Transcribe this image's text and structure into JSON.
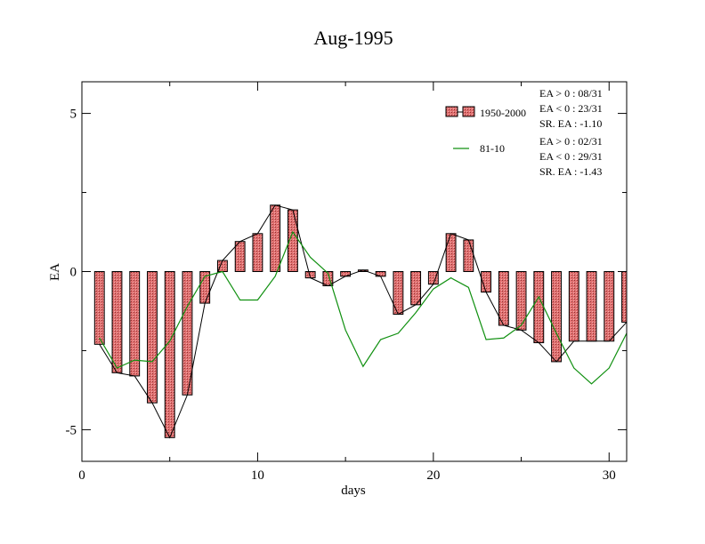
{
  "chart_data": {
    "type": "bar",
    "title": "Aug-1995",
    "xlabel": "days",
    "ylabel": "EA",
    "xlim": [
      0,
      31
    ],
    "ylim": [
      -6,
      6
    ],
    "xticks": [
      0,
      10,
      20,
      30
    ],
    "yticks": [
      -5,
      0,
      5
    ],
    "xtick_labels": [
      "0",
      "10",
      "20",
      "30"
    ],
    "ytick_labels": [
      "-5",
      "0",
      "5"
    ],
    "grid": false,
    "legend_position": "top-right",
    "x": [
      1,
      2,
      3,
      4,
      5,
      6,
      7,
      8,
      9,
      10,
      11,
      12,
      13,
      14,
      15,
      16,
      17,
      18,
      19,
      20,
      21,
      22,
      23,
      24,
      25,
      26,
      27,
      28,
      29,
      30,
      31
    ],
    "series": [
      {
        "name": "1950-2000",
        "kind": "bar",
        "color": "#e07070",
        "values": [
          -2.3,
          -3.2,
          -3.3,
          -4.15,
          -5.25,
          -3.9,
          -1.0,
          0.35,
          0.95,
          1.2,
          2.1,
          1.95,
          -0.2,
          -0.45,
          -0.15,
          0.05,
          -0.15,
          -1.35,
          -1.05,
          -0.4,
          1.2,
          1.0,
          -0.65,
          -1.7,
          -1.85,
          -2.25,
          -2.85,
          -2.2,
          -2.2,
          -2.2,
          -1.6
        ]
      },
      {
        "name": "81-10",
        "kind": "line",
        "color": "#109010",
        "values": [
          -2.1,
          -3.05,
          -2.8,
          -2.85,
          -2.2,
          -1.1,
          -0.15,
          0.0,
          -0.9,
          -0.9,
          -0.15,
          1.25,
          0.45,
          -0.05,
          -1.85,
          -3.0,
          -2.15,
          -1.95,
          -1.3,
          -0.55,
          -0.2,
          -0.5,
          -2.15,
          -2.1,
          -1.7,
          -0.8,
          -1.95,
          -3.05,
          -3.55,
          -3.05,
          -1.95
        ]
      }
    ],
    "legend": [
      {
        "name": "1950-2000",
        "stats": [
          "EA > 0 : 08/31",
          "EA < 0 : 23/31",
          "SR. EA : -1.10"
        ]
      },
      {
        "name": "81-10",
        "stats": [
          "EA > 0 : 02/31",
          "EA < 0 : 29/31",
          "SR. EA : -1.43"
        ]
      }
    ]
  }
}
